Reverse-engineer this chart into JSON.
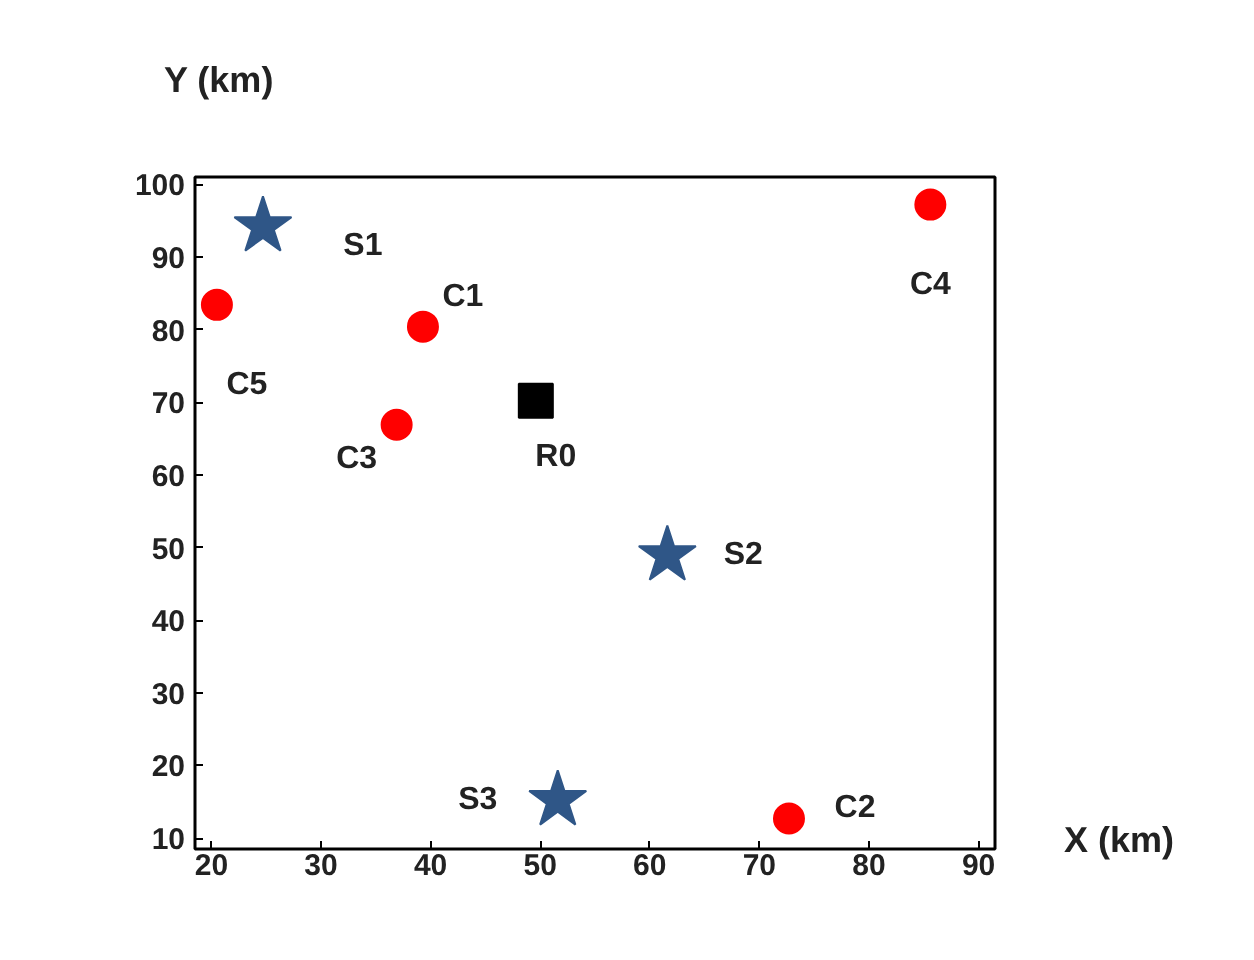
{
  "chart_data": {
    "type": "scatter",
    "xlabel": "X (km)",
    "ylabel": "Y (km)",
    "xlim": [
      18.5,
      91.5
    ],
    "ylim": [
      8.5,
      101
    ],
    "xticks": [
      20,
      30,
      40,
      50,
      60,
      70,
      80,
      90
    ],
    "yticks": [
      10,
      20,
      30,
      40,
      50,
      60,
      70,
      80,
      90,
      100
    ],
    "grid": false,
    "series": [
      {
        "color": "#2f5687",
        "marker": "star",
        "x": [
          24.7,
          61.6,
          51.6
        ],
        "values": [
          94.2,
          48.9,
          15.2
        ]
      },
      {
        "color": "#ff0000",
        "marker": "circle",
        "x": [
          20.5,
          39.3,
          36.9,
          72.7,
          85.6
        ],
        "values": [
          83.4,
          80.4,
          66.9,
          12.7,
          97.2
        ]
      },
      {
        "color": "#000000",
        "marker": "square",
        "x": [
          49.6
        ],
        "values": [
          70.2
        ]
      }
    ],
    "annotations": [
      {
        "text": "S1",
        "x": 24.7,
        "y": 94.2
      },
      {
        "text": "S2",
        "x": 61.6,
        "y": 48.9
      },
      {
        "text": "S3",
        "x": 51.6,
        "y": 15.2
      },
      {
        "text": "C5",
        "x": 20.5,
        "y": 83.4
      },
      {
        "text": "C1",
        "x": 39.3,
        "y": 80.4
      },
      {
        "text": "C3",
        "x": 36.9,
        "y": 66.9
      },
      {
        "text": "C2",
        "x": 72.7,
        "y": 12.7
      },
      {
        "text": "C4",
        "x": 85.6,
        "y": 97.2
      },
      {
        "text": "R0",
        "x": 49.6,
        "y": 70.2
      }
    ]
  }
}
